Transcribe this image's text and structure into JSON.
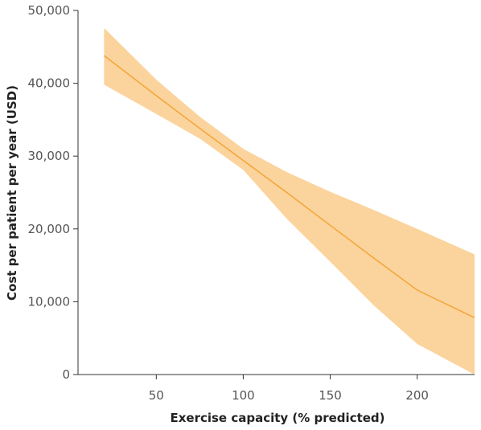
{
  "chart_data": {
    "type": "line",
    "title": "",
    "xlabel": "Exercise capacity (% predicted)",
    "ylabel": "Cost per patient per year (USD)",
    "xlim": [
      5,
      233
    ],
    "ylim": [
      0,
      50000
    ],
    "x_ticks": [
      {
        "value": 50,
        "label": "50"
      },
      {
        "value": 100,
        "label": "100"
      },
      {
        "value": 150,
        "label": "150"
      },
      {
        "value": 200,
        "label": "200"
      }
    ],
    "y_ticks": [
      {
        "value": 0,
        "label": "0"
      },
      {
        "value": 10000,
        "label": "10,000"
      },
      {
        "value": 20000,
        "label": "20,000"
      },
      {
        "value": 30000,
        "label": "30,000"
      },
      {
        "value": 40000,
        "label": "40,000"
      },
      {
        "value": 50000,
        "label": "50,000"
      }
    ],
    "grid": false,
    "series": [
      {
        "line_color": "#f2a53a",
        "band_color": "#fbd39c",
        "x": [
          20,
          50,
          75,
          100,
          125,
          150,
          175,
          200,
          233
        ],
        "y": [
          43800,
          38300,
          33800,
          29400,
          25000,
          20500,
          16000,
          11600,
          7800
        ],
        "lower": [
          39800,
          35800,
          32400,
          28100,
          21400,
          15500,
          9500,
          4200,
          0
        ],
        "upper": [
          47600,
          40500,
          35400,
          31000,
          27800,
          25100,
          22600,
          20000,
          16500
        ]
      }
    ]
  }
}
